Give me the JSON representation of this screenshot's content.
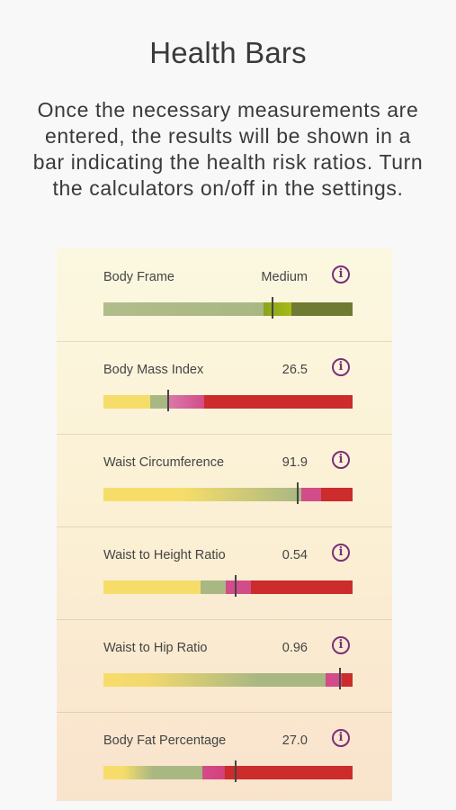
{
  "header": {
    "title": "Health Bars",
    "intro": "Once the necessary measurements are entered, the results will be shown in a bar indicating the health risk ratios. Turn the calculators on/off in the settings."
  },
  "colors": {
    "info_icon": "#7b2f7a",
    "yellow": "#f6dd6a",
    "sage": "#a9b783",
    "pink": "#d24c8a",
    "red": "#cc2c2c",
    "olive": "#6f7a33",
    "lime": "#a6ba17"
  },
  "metrics": [
    {
      "label": "Body Frame",
      "value": "Medium",
      "icon": "info-icon",
      "marker_fraction": 0.68
    },
    {
      "label": "Body Mass Index",
      "value": "26.5",
      "icon": "info-icon",
      "marker_fraction": 0.26
    },
    {
      "label": "Waist Circumference",
      "value": "91.9",
      "icon": "info-icon",
      "marker_fraction": 0.78
    },
    {
      "label": "Waist to Height Ratio",
      "value": "0.54",
      "icon": "info-icon",
      "marker_fraction": 0.53
    },
    {
      "label": "Waist to Hip Ratio",
      "value": "0.96",
      "icon": "info-icon",
      "marker_fraction": 0.95
    },
    {
      "label": "Body Fat Percentage",
      "value": "27.0",
      "icon": "info-icon",
      "marker_fraction": 0.53
    }
  ]
}
